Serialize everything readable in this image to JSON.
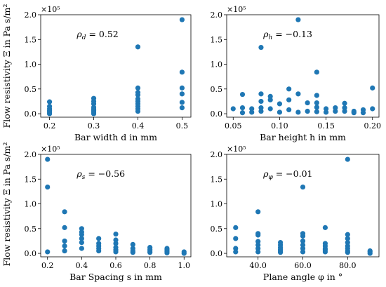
{
  "figure": {
    "shared_ylabel": "Flow resistivity Ξ in Pa s/m²",
    "marker_color": "#1f77b4"
  },
  "chart_data": [
    {
      "type": "scatter",
      "xlabel": "Bar width d in mm",
      "ylabel": "Flow resistivity Ξ in Pa s/m²",
      "y_scale_label": "×10⁵",
      "annotation": {
        "symbol": "ρ",
        "subscript": "d",
        "text": " = 0.52"
      },
      "xlim": [
        0.18,
        0.52
      ],
      "ylim": [
        -0.07,
        2.0
      ],
      "xticks": [
        0.2,
        0.3,
        0.4,
        0.5
      ],
      "xtick_labels": [
        "0.2",
        "0.3",
        "0.4",
        "0.5"
      ],
      "yticks": [
        0.0,
        0.5,
        1.0,
        1.5,
        2.0
      ],
      "ytick_labels": [
        "0.0",
        "0.5",
        "1.0",
        "1.5",
        "2.0"
      ],
      "points": [
        {
          "x": 0.2,
          "y": 0.0
        },
        {
          "x": 0.2,
          "y": 0.03
        },
        {
          "x": 0.2,
          "y": 0.06
        },
        {
          "x": 0.2,
          "y": 0.1
        },
        {
          "x": 0.2,
          "y": 0.15
        },
        {
          "x": 0.2,
          "y": 0.24
        },
        {
          "x": 0.3,
          "y": 0.0
        },
        {
          "x": 0.3,
          "y": 0.03
        },
        {
          "x": 0.3,
          "y": 0.06
        },
        {
          "x": 0.3,
          "y": 0.09
        },
        {
          "x": 0.3,
          "y": 0.13
        },
        {
          "x": 0.3,
          "y": 0.2
        },
        {
          "x": 0.3,
          "y": 0.25
        },
        {
          "x": 0.3,
          "y": 0.31
        },
        {
          "x": 0.4,
          "y": 0.05
        },
        {
          "x": 0.4,
          "y": 0.1
        },
        {
          "x": 0.4,
          "y": 0.15
        },
        {
          "x": 0.4,
          "y": 0.2
        },
        {
          "x": 0.4,
          "y": 0.25
        },
        {
          "x": 0.4,
          "y": 0.3
        },
        {
          "x": 0.4,
          "y": 0.38
        },
        {
          "x": 0.4,
          "y": 0.43
        },
        {
          "x": 0.4,
          "y": 0.52
        },
        {
          "x": 0.4,
          "y": 1.35
        },
        {
          "x": 0.5,
          "y": 0.12
        },
        {
          "x": 0.5,
          "y": 0.23
        },
        {
          "x": 0.5,
          "y": 0.4
        },
        {
          "x": 0.5,
          "y": 0.52
        },
        {
          "x": 0.5,
          "y": 0.84
        },
        {
          "x": 0.5,
          "y": 1.9
        }
      ]
    },
    {
      "type": "scatter",
      "xlabel": "Bar height h in mm",
      "ylabel": "",
      "y_scale_label": "×10⁵",
      "annotation": {
        "symbol": "ρ",
        "subscript": "h",
        "text": " = −0.13"
      },
      "xlim": [
        0.043,
        0.207
      ],
      "ylim": [
        -0.07,
        2.0
      ],
      "xticks": [
        0.05,
        0.1,
        0.15,
        0.2
      ],
      "xtick_labels": [
        "0.05",
        "0.10",
        "0.15",
        "0.20"
      ],
      "yticks": [
        0.0,
        0.5,
        1.0,
        1.5,
        2.0
      ],
      "ytick_labels": [
        "0.0",
        "0.5",
        "1.0",
        "1.5",
        "2.0"
      ],
      "points": [
        {
          "x": 0.05,
          "y": 0.1
        },
        {
          "x": 0.06,
          "y": 0.02
        },
        {
          "x": 0.06,
          "y": 0.12
        },
        {
          "x": 0.06,
          "y": 0.39
        },
        {
          "x": 0.07,
          "y": 0.03
        },
        {
          "x": 0.07,
          "y": 0.1
        },
        {
          "x": 0.08,
          "y": 0.05
        },
        {
          "x": 0.08,
          "y": 0.12
        },
        {
          "x": 0.08,
          "y": 0.25
        },
        {
          "x": 0.08,
          "y": 0.4
        },
        {
          "x": 0.08,
          "y": 1.34
        },
        {
          "x": 0.09,
          "y": 0.1
        },
        {
          "x": 0.09,
          "y": 0.28
        },
        {
          "x": 0.09,
          "y": 0.35
        },
        {
          "x": 0.1,
          "y": 0.03
        },
        {
          "x": 0.1,
          "y": 0.2
        },
        {
          "x": 0.11,
          "y": 0.08
        },
        {
          "x": 0.11,
          "y": 0.28
        },
        {
          "x": 0.11,
          "y": 0.5
        },
        {
          "x": 0.12,
          "y": 0.03
        },
        {
          "x": 0.12,
          "y": 0.4
        },
        {
          "x": 0.12,
          "y": 1.9
        },
        {
          "x": 0.13,
          "y": 0.05
        },
        {
          "x": 0.13,
          "y": 0.22
        },
        {
          "x": 0.14,
          "y": 0.04
        },
        {
          "x": 0.14,
          "y": 0.13
        },
        {
          "x": 0.14,
          "y": 0.22
        },
        {
          "x": 0.14,
          "y": 0.37
        },
        {
          "x": 0.14,
          "y": 0.84
        },
        {
          "x": 0.15,
          "y": 0.03
        },
        {
          "x": 0.15,
          "y": 0.1
        },
        {
          "x": 0.16,
          "y": 0.05
        },
        {
          "x": 0.16,
          "y": 0.12
        },
        {
          "x": 0.17,
          "y": 0.05
        },
        {
          "x": 0.17,
          "y": 0.12
        },
        {
          "x": 0.17,
          "y": 0.21
        },
        {
          "x": 0.18,
          "y": 0.02
        },
        {
          "x": 0.18,
          "y": 0.05
        },
        {
          "x": 0.19,
          "y": 0.02
        },
        {
          "x": 0.19,
          "y": 0.08
        },
        {
          "x": 0.2,
          "y": 0.1
        },
        {
          "x": 0.2,
          "y": 0.52
        }
      ]
    },
    {
      "type": "scatter",
      "xlabel": "Bar Spacing s in mm",
      "ylabel": "Flow resistivity Ξ in Pa s/m²",
      "y_scale_label": "×10⁵",
      "annotation": {
        "symbol": "ρ",
        "subscript": "s",
        "text": " = −0.56"
      },
      "xlim": [
        0.16,
        1.04
      ],
      "ylim": [
        -0.07,
        2.0
      ],
      "xticks": [
        0.2,
        0.4,
        0.6,
        0.8,
        1.0
      ],
      "xtick_labels": [
        "0.2",
        "0.4",
        "0.6",
        "0.8",
        "1.0"
      ],
      "yticks": [
        0.0,
        0.5,
        1.0,
        1.5,
        2.0
      ],
      "ytick_labels": [
        "0.0",
        "0.5",
        "1.0",
        "1.5",
        "2.0"
      ],
      "points": [
        {
          "x": 0.2,
          "y": 0.03
        },
        {
          "x": 0.2,
          "y": 1.34
        },
        {
          "x": 0.2,
          "y": 1.9
        },
        {
          "x": 0.3,
          "y": 0.05
        },
        {
          "x": 0.3,
          "y": 0.15
        },
        {
          "x": 0.3,
          "y": 0.25
        },
        {
          "x": 0.3,
          "y": 0.52
        },
        {
          "x": 0.3,
          "y": 0.84
        },
        {
          "x": 0.4,
          "y": 0.1
        },
        {
          "x": 0.4,
          "y": 0.22
        },
        {
          "x": 0.4,
          "y": 0.3
        },
        {
          "x": 0.4,
          "y": 0.38
        },
        {
          "x": 0.4,
          "y": 0.43
        },
        {
          "x": 0.4,
          "y": 0.5
        },
        {
          "x": 0.5,
          "y": 0.05
        },
        {
          "x": 0.5,
          "y": 0.1
        },
        {
          "x": 0.5,
          "y": 0.15
        },
        {
          "x": 0.5,
          "y": 0.2
        },
        {
          "x": 0.5,
          "y": 0.3
        },
        {
          "x": 0.6,
          "y": 0.03
        },
        {
          "x": 0.6,
          "y": 0.07
        },
        {
          "x": 0.6,
          "y": 0.12
        },
        {
          "x": 0.6,
          "y": 0.2
        },
        {
          "x": 0.6,
          "y": 0.27
        },
        {
          "x": 0.6,
          "y": 0.39
        },
        {
          "x": 0.7,
          "y": 0.02
        },
        {
          "x": 0.7,
          "y": 0.05
        },
        {
          "x": 0.7,
          "y": 0.1
        },
        {
          "x": 0.7,
          "y": 0.18
        },
        {
          "x": 0.8,
          "y": 0.02
        },
        {
          "x": 0.8,
          "y": 0.05
        },
        {
          "x": 0.8,
          "y": 0.08
        },
        {
          "x": 0.8,
          "y": 0.12
        },
        {
          "x": 0.9,
          "y": 0.01
        },
        {
          "x": 0.9,
          "y": 0.04
        },
        {
          "x": 0.9,
          "y": 0.07
        },
        {
          "x": 0.9,
          "y": 0.1
        },
        {
          "x": 1.0,
          "y": 0.0
        },
        {
          "x": 1.0,
          "y": 0.03
        }
      ]
    },
    {
      "type": "scatter",
      "xlabel": "Plane angle φ in °",
      "ylabel": "",
      "y_scale_label": "×10⁵",
      "annotation": {
        "symbol": "ρ",
        "subscript": "φ",
        "text": " = −0.01"
      },
      "xlim": [
        26.0,
        94.0
      ],
      "ylim": [
        -0.07,
        2.0
      ],
      "xticks": [
        40,
        60,
        80
      ],
      "xtick_labels": [
        "40.0",
        "60.0",
        "80.0"
      ],
      "yticks": [
        0.0,
        0.5,
        1.0,
        1.5,
        2.0
      ],
      "ytick_labels": [
        "0.0",
        "0.5",
        "1.0",
        "1.5",
        "2.0"
      ],
      "points": [
        {
          "x": 30,
          "y": 0.03
        },
        {
          "x": 30,
          "y": 0.1
        },
        {
          "x": 30,
          "y": 0.3
        },
        {
          "x": 30,
          "y": 0.52
        },
        {
          "x": 40,
          "y": 0.03
        },
        {
          "x": 40,
          "y": 0.1
        },
        {
          "x": 40,
          "y": 0.17
        },
        {
          "x": 40,
          "y": 0.24
        },
        {
          "x": 40,
          "y": 0.37
        },
        {
          "x": 40,
          "y": 0.4
        },
        {
          "x": 40,
          "y": 0.84
        },
        {
          "x": 50,
          "y": 0.02
        },
        {
          "x": 50,
          "y": 0.05
        },
        {
          "x": 50,
          "y": 0.08
        },
        {
          "x": 50,
          "y": 0.12
        },
        {
          "x": 50,
          "y": 0.17
        },
        {
          "x": 50,
          "y": 0.22
        },
        {
          "x": 60,
          "y": 0.03
        },
        {
          "x": 60,
          "y": 0.1
        },
        {
          "x": 60,
          "y": 0.17
        },
        {
          "x": 60,
          "y": 0.25
        },
        {
          "x": 60,
          "y": 0.35
        },
        {
          "x": 60,
          "y": 0.4
        },
        {
          "x": 60,
          "y": 1.34
        },
        {
          "x": 70,
          "y": 0.03
        },
        {
          "x": 70,
          "y": 0.07
        },
        {
          "x": 70,
          "y": 0.1
        },
        {
          "x": 70,
          "y": 0.15
        },
        {
          "x": 70,
          "y": 0.2
        },
        {
          "x": 70,
          "y": 0.52
        },
        {
          "x": 80,
          "y": 0.02
        },
        {
          "x": 80,
          "y": 0.05
        },
        {
          "x": 80,
          "y": 0.1
        },
        {
          "x": 80,
          "y": 0.15
        },
        {
          "x": 80,
          "y": 0.22
        },
        {
          "x": 80,
          "y": 0.3
        },
        {
          "x": 80,
          "y": 0.38
        },
        {
          "x": 80,
          "y": 1.9
        },
        {
          "x": 90,
          "y": 0.0
        },
        {
          "x": 90,
          "y": 0.03
        },
        {
          "x": 90,
          "y": 0.05
        }
      ]
    }
  ]
}
